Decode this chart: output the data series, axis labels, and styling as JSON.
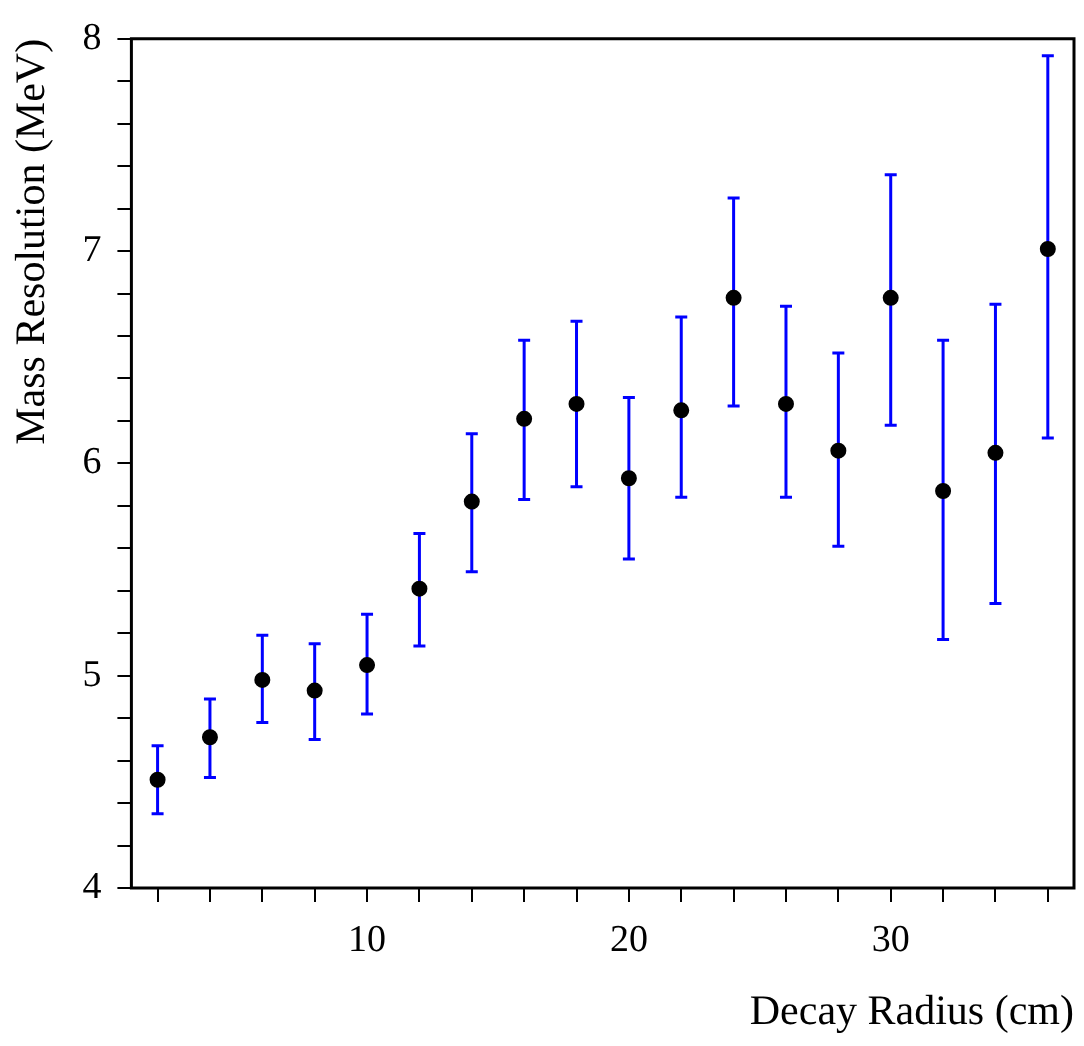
{
  "chart_data": {
    "type": "scatter",
    "xlabel": "Decay Radius (cm)",
    "ylabel": "Mass Resolution (MeV)",
    "x": [
      2,
      4,
      6,
      8,
      10,
      12,
      14,
      16,
      18,
      20,
      22,
      24,
      26,
      28,
      30,
      32,
      34,
      36
    ],
    "values": [
      4.51,
      4.71,
      4.98,
      4.93,
      5.05,
      5.41,
      5.82,
      6.21,
      6.28,
      5.93,
      6.25,
      6.78,
      6.28,
      6.06,
      6.78,
      5.87,
      6.05,
      7.01
    ],
    "errors": [
      [
        4.35,
        4.67
      ],
      [
        4.52,
        4.89
      ],
      [
        4.78,
        5.19
      ],
      [
        4.7,
        5.15
      ],
      [
        4.82,
        5.29
      ],
      [
        5.14,
        5.67
      ],
      [
        5.49,
        6.14
      ],
      [
        5.83,
        6.58
      ],
      [
        5.89,
        6.67
      ],
      [
        5.55,
        6.31
      ],
      [
        5.84,
        6.69
      ],
      [
        6.27,
        7.25
      ],
      [
        5.84,
        6.74
      ],
      [
        5.61,
        6.52
      ],
      [
        6.18,
        7.36
      ],
      [
        5.17,
        6.58
      ],
      [
        5.34,
        6.75
      ],
      [
        6.12,
        7.92
      ]
    ],
    "color": "#000000",
    "marker": "circle",
    "grid": false,
    "legend": false,
    "xlim": [
      1,
      37
    ],
    "ylim": [
      4,
      8
    ],
    "xticks": [
      {
        "value": 2,
        "label": null
      },
      {
        "value": 4,
        "label": null
      },
      {
        "value": 6,
        "label": null
      },
      {
        "value": 8,
        "label": null
      },
      10,
      {
        "value": 12,
        "label": null
      },
      {
        "value": 14,
        "label": null
      },
      {
        "value": 16,
        "label": null
      },
      {
        "value": 18,
        "label": null
      },
      20,
      {
        "value": 22,
        "label": null
      },
      {
        "value": 24,
        "label": null
      },
      {
        "value": 26,
        "label": null
      },
      {
        "value": 28,
        "label": null
      },
      30,
      {
        "value": 32,
        "label": null
      },
      {
        "value": 34,
        "label": null
      },
      {
        "value": 36,
        "label": null
      }
    ],
    "yticks": [
      4,
      {
        "value": 4.2,
        "label": null
      },
      {
        "value": 4.4,
        "label": null
      },
      {
        "value": 4.6,
        "label": null
      },
      {
        "value": 4.8,
        "label": null
      },
      5,
      {
        "value": 5.2,
        "label": null
      },
      {
        "value": 5.4,
        "label": null
      },
      {
        "value": 5.6,
        "label": null
      },
      {
        "value": 5.8,
        "label": null
      },
      6,
      {
        "value": 6.2,
        "label": null
      },
      {
        "value": 6.4,
        "label": null
      },
      {
        "value": 6.6,
        "label": null
      },
      {
        "value": 6.8,
        "label": null
      },
      7,
      {
        "value": 7.2,
        "label": null
      },
      {
        "value": 7.4,
        "label": null
      },
      {
        "value": 7.6,
        "label": null
      },
      {
        "value": 7.8,
        "label": null
      },
      8
    ]
  }
}
